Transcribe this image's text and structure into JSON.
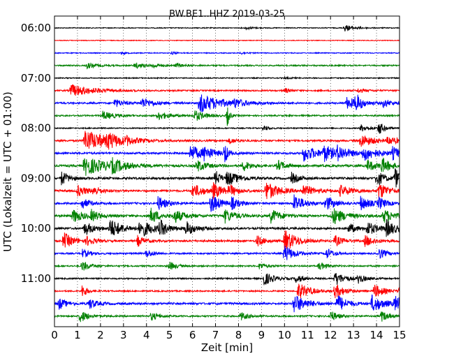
{
  "chart_data": {
    "type": "line",
    "title": "BW.BE1..HHZ 2019-03-25",
    "xlabel": "Zeit  [min]",
    "ylabel": "UTC (Lokalzeit = UTC + 01:00)",
    "xlim": [
      0,
      15
    ],
    "x_ticks": [
      0,
      1,
      2,
      3,
      4,
      5,
      6,
      7,
      8,
      9,
      10,
      11,
      12,
      13,
      14,
      15
    ],
    "x_tick_labels": [
      "0",
      "1",
      "2",
      "3",
      "4",
      "5",
      "6",
      "7",
      "8",
      "9",
      "10",
      "11",
      "12",
      "13",
      "14",
      "15"
    ],
    "y_tick_labels": [
      "06:00",
      "07:00",
      "08:00",
      "09:00",
      "10:00",
      "11:00"
    ],
    "y_tick_rows": [
      0,
      4,
      8,
      12,
      16,
      20
    ],
    "grid": "vertical dotted lines at each minute",
    "row_interval_minutes": 15,
    "row_colors": [
      "#000000",
      "#ff0000",
      "#0000ff",
      "#008000"
    ],
    "rows": [
      {
        "start": "06:00",
        "color": "#000000",
        "noise": 0.6,
        "events": [
          {
            "t": 12.6,
            "a": 5,
            "d": 0.4
          },
          {
            "t": 8.3,
            "a": 2,
            "d": 0.3
          }
        ]
      },
      {
        "start": "06:15",
        "color": "#ff0000",
        "noise": 0.5,
        "events": []
      },
      {
        "start": "06:30",
        "color": "#0000ff",
        "noise": 0.6,
        "events": [
          {
            "t": 2.9,
            "a": 2,
            "d": 0.2
          },
          {
            "t": 5.1,
            "a": 2,
            "d": 0.2
          },
          {
            "t": 8.1,
            "a": 2,
            "d": 0.2
          }
        ]
      },
      {
        "start": "06:45",
        "color": "#008000",
        "noise": 0.9,
        "events": [
          {
            "t": 1.4,
            "a": 4,
            "d": 0.4
          },
          {
            "t": 3.5,
            "a": 4,
            "d": 0.4
          },
          {
            "t": 4.3,
            "a": 3,
            "d": 0.3
          },
          {
            "t": 5.3,
            "a": 3,
            "d": 0.3
          }
        ]
      },
      {
        "start": "07:00",
        "color": "#000000",
        "noise": 0.7,
        "events": [
          {
            "t": 10.0,
            "a": 2,
            "d": 0.2
          }
        ]
      },
      {
        "start": "07:15",
        "color": "#ff0000",
        "noise": 1.0,
        "events": [
          {
            "t": 0.7,
            "a": 9,
            "d": 0.9
          },
          {
            "t": 10.0,
            "a": 4,
            "d": 0.2
          },
          {
            "t": 13.2,
            "a": 3,
            "d": 0.3
          }
        ]
      },
      {
        "start": "07:30",
        "color": "#0000ff",
        "noise": 1.2,
        "events": [
          {
            "t": 2.6,
            "a": 6,
            "d": 0.4
          },
          {
            "t": 3.8,
            "a": 7,
            "d": 0.5
          },
          {
            "t": 6.3,
            "a": 14,
            "d": 0.9
          },
          {
            "t": 7.8,
            "a": 5,
            "d": 0.4
          },
          {
            "t": 12.7,
            "a": 8,
            "d": 0.6
          },
          {
            "t": 13.1,
            "a": 12,
            "d": 0.2
          },
          {
            "t": 14.3,
            "a": 6,
            "d": 0.3
          }
        ]
      },
      {
        "start": "07:45",
        "color": "#008000",
        "noise": 1.0,
        "events": [
          {
            "t": 2.1,
            "a": 6,
            "d": 0.5
          },
          {
            "t": 4.5,
            "a": 6,
            "d": 0.5
          },
          {
            "t": 6.1,
            "a": 8,
            "d": 0.4
          },
          {
            "t": 7.5,
            "a": 16,
            "d": 0.1
          }
        ]
      },
      {
        "start": "08:00",
        "color": "#000000",
        "noise": 0.8,
        "events": [
          {
            "t": 9.1,
            "a": 4,
            "d": 0.2
          },
          {
            "t": 13.3,
            "a": 5,
            "d": 0.4
          },
          {
            "t": 14.1,
            "a": 10,
            "d": 0.2
          }
        ]
      },
      {
        "start": "08:15",
        "color": "#ff0000",
        "noise": 1.2,
        "events": [
          {
            "t": 1.3,
            "a": 16,
            "d": 1.0
          },
          {
            "t": 2.3,
            "a": 8,
            "d": 0.5
          },
          {
            "t": 3.1,
            "a": 4,
            "d": 0.3
          },
          {
            "t": 7.6,
            "a": 4,
            "d": 0.3
          },
          {
            "t": 13.3,
            "a": 10,
            "d": 0.5
          },
          {
            "t": 14.5,
            "a": 6,
            "d": 0.4
          }
        ]
      },
      {
        "start": "08:30",
        "color": "#0000ff",
        "noise": 1.4,
        "events": [
          {
            "t": 5.9,
            "a": 12,
            "d": 0.5
          },
          {
            "t": 6.5,
            "a": 8,
            "d": 0.4
          },
          {
            "t": 7.4,
            "a": 18,
            "d": 0.1
          },
          {
            "t": 10.8,
            "a": 12,
            "d": 0.6
          },
          {
            "t": 11.7,
            "a": 10,
            "d": 0.5
          },
          {
            "t": 12.3,
            "a": 8,
            "d": 0.5
          },
          {
            "t": 13.4,
            "a": 10,
            "d": 0.6
          },
          {
            "t": 14.7,
            "a": 8,
            "d": 0.4
          }
        ]
      },
      {
        "start": "08:45",
        "color": "#008000",
        "noise": 1.5,
        "events": [
          {
            "t": 1.3,
            "a": 14,
            "d": 0.9
          },
          {
            "t": 2.5,
            "a": 8,
            "d": 0.5
          },
          {
            "t": 6.2,
            "a": 8,
            "d": 0.4
          },
          {
            "t": 8.2,
            "a": 8,
            "d": 0.3
          },
          {
            "t": 9.7,
            "a": 8,
            "d": 0.3
          },
          {
            "t": 13.6,
            "a": 8,
            "d": 0.4
          },
          {
            "t": 14.2,
            "a": 10,
            "d": 0.4
          }
        ]
      },
      {
        "start": "09:00",
        "color": "#000000",
        "noise": 1.5,
        "events": [
          {
            "t": 0.3,
            "a": 10,
            "d": 0.3
          },
          {
            "t": 7.0,
            "a": 12,
            "d": 0.2
          },
          {
            "t": 7.5,
            "a": 10,
            "d": 0.5
          },
          {
            "t": 10.3,
            "a": 8,
            "d": 0.3
          },
          {
            "t": 14.0,
            "a": 12,
            "d": 0.3
          },
          {
            "t": 14.8,
            "a": 14,
            "d": 0.3
          }
        ]
      },
      {
        "start": "09:15",
        "color": "#ff0000",
        "noise": 1.4,
        "events": [
          {
            "t": 1.0,
            "a": 8,
            "d": 0.4
          },
          {
            "t": 1.7,
            "a": 6,
            "d": 0.3
          },
          {
            "t": 6.0,
            "a": 10,
            "d": 0.5
          },
          {
            "t": 6.9,
            "a": 10,
            "d": 0.4
          },
          {
            "t": 7.6,
            "a": 8,
            "d": 0.3
          },
          {
            "t": 9.2,
            "a": 14,
            "d": 0.5
          },
          {
            "t": 10.8,
            "a": 8,
            "d": 0.5
          },
          {
            "t": 12.4,
            "a": 8,
            "d": 0.5
          },
          {
            "t": 14.1,
            "a": 12,
            "d": 0.4
          }
        ]
      },
      {
        "start": "09:30",
        "color": "#0000ff",
        "noise": 1.3,
        "events": [
          {
            "t": 1.2,
            "a": 8,
            "d": 0.3
          },
          {
            "t": 4.5,
            "a": 10,
            "d": 0.4
          },
          {
            "t": 6.8,
            "a": 14,
            "d": 0.4
          },
          {
            "t": 7.7,
            "a": 8,
            "d": 0.3
          },
          {
            "t": 10.4,
            "a": 14,
            "d": 0.4
          },
          {
            "t": 11.8,
            "a": 10,
            "d": 0.4
          },
          {
            "t": 13.3,
            "a": 10,
            "d": 0.4
          },
          {
            "t": 14.1,
            "a": 8,
            "d": 0.3
          }
        ]
      },
      {
        "start": "09:45",
        "color": "#008000",
        "noise": 1.6,
        "events": [
          {
            "t": 0.8,
            "a": 10,
            "d": 0.4
          },
          {
            "t": 1.6,
            "a": 8,
            "d": 0.3
          },
          {
            "t": 4.2,
            "a": 12,
            "d": 0.3
          },
          {
            "t": 5.2,
            "a": 10,
            "d": 0.4
          },
          {
            "t": 7.4,
            "a": 10,
            "d": 0.4
          },
          {
            "t": 9.4,
            "a": 10,
            "d": 0.4
          },
          {
            "t": 12.1,
            "a": 12,
            "d": 0.5
          },
          {
            "t": 14.3,
            "a": 10,
            "d": 0.4
          }
        ]
      },
      {
        "start": "10:00",
        "color": "#000000",
        "noise": 1.4,
        "events": [
          {
            "t": 1.3,
            "a": 10,
            "d": 0.4
          },
          {
            "t": 2.4,
            "a": 14,
            "d": 0.5
          },
          {
            "t": 3.7,
            "a": 12,
            "d": 0.6
          },
          {
            "t": 4.6,
            "a": 10,
            "d": 0.3
          },
          {
            "t": 5.7,
            "a": 10,
            "d": 0.4
          },
          {
            "t": 12.8,
            "a": 8,
            "d": 0.3
          },
          {
            "t": 13.6,
            "a": 10,
            "d": 0.4
          },
          {
            "t": 14.4,
            "a": 12,
            "d": 0.4
          }
        ]
      },
      {
        "start": "10:15",
        "color": "#ff0000",
        "noise": 1.3,
        "events": [
          {
            "t": 0.4,
            "a": 12,
            "d": 0.4
          },
          {
            "t": 1.4,
            "a": 6,
            "d": 0.3
          },
          {
            "t": 3.6,
            "a": 8,
            "d": 0.3
          },
          {
            "t": 8.8,
            "a": 8,
            "d": 0.3
          },
          {
            "t": 10.0,
            "a": 16,
            "d": 0.5
          },
          {
            "t": 12.2,
            "a": 8,
            "d": 0.3
          },
          {
            "t": 13.5,
            "a": 8,
            "d": 0.4
          }
        ]
      },
      {
        "start": "10:30",
        "color": "#0000ff",
        "noise": 1.1,
        "events": [
          {
            "t": 1.2,
            "a": 6,
            "d": 0.3
          },
          {
            "t": 4.0,
            "a": 6,
            "d": 0.3
          },
          {
            "t": 10.0,
            "a": 12,
            "d": 0.4
          },
          {
            "t": 11.8,
            "a": 8,
            "d": 0.3
          },
          {
            "t": 14.1,
            "a": 8,
            "d": 0.3
          }
        ]
      },
      {
        "start": "10:45",
        "color": "#008000",
        "noise": 1.0,
        "events": [
          {
            "t": 1.2,
            "a": 8,
            "d": 0.3
          },
          {
            "t": 5.0,
            "a": 6,
            "d": 0.3
          },
          {
            "t": 8.9,
            "a": 5,
            "d": 0.3
          },
          {
            "t": 11.5,
            "a": 6,
            "d": 0.3
          }
        ]
      },
      {
        "start": "11:00",
        "color": "#000000",
        "noise": 1.0,
        "events": [
          {
            "t": 9.1,
            "a": 10,
            "d": 0.4
          },
          {
            "t": 10.5,
            "a": 6,
            "d": 0.3
          },
          {
            "t": 12.2,
            "a": 10,
            "d": 0.4
          },
          {
            "t": 13.2,
            "a": 6,
            "d": 0.3
          }
        ]
      },
      {
        "start": "11:15",
        "color": "#ff0000",
        "noise": 1.0,
        "events": [
          {
            "t": 1.2,
            "a": 10,
            "d": 0.2
          },
          {
            "t": 10.6,
            "a": 12,
            "d": 0.5
          },
          {
            "t": 12.2,
            "a": 10,
            "d": 0.4
          },
          {
            "t": 13.9,
            "a": 10,
            "d": 0.4
          },
          {
            "t": 15.0,
            "a": 8,
            "d": 0.3
          }
        ]
      },
      {
        "start": "11:30",
        "color": "#0000ff",
        "noise": 1.4,
        "events": [
          {
            "t": 0.2,
            "a": 8,
            "d": 0.3
          },
          {
            "t": 1.5,
            "a": 8,
            "d": 0.3
          },
          {
            "t": 10.4,
            "a": 14,
            "d": 0.5
          },
          {
            "t": 12.3,
            "a": 12,
            "d": 0.4
          },
          {
            "t": 13.8,
            "a": 12,
            "d": 0.5
          },
          {
            "t": 14.8,
            "a": 10,
            "d": 0.4
          }
        ]
      },
      {
        "start": "11:45",
        "color": "#008000",
        "noise": 1.1,
        "events": [
          {
            "t": 1.1,
            "a": 10,
            "d": 0.3
          },
          {
            "t": 4.2,
            "a": 6,
            "d": 0.3
          },
          {
            "t": 8.1,
            "a": 6,
            "d": 0.3
          },
          {
            "t": 12.0,
            "a": 8,
            "d": 0.3
          },
          {
            "t": 14.2,
            "a": 8,
            "d": 0.3
          }
        ]
      }
    ]
  }
}
